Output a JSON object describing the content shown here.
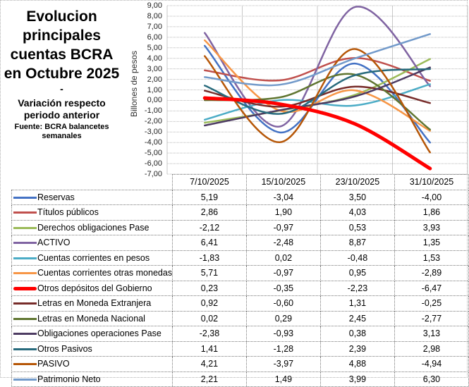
{
  "title": {
    "main": "Evolucion principales cuentas BCRA en Octubre 2025",
    "dash": "-",
    "subtitle": "Variación respecto periodo anterior",
    "source": "Fuente: BCRA balancetes semanales"
  },
  "chart_data": {
    "type": "line",
    "smoothed": true,
    "title": "Evolucion principales cuentas BCRA en Octubre 2025 - Variación respecto periodo anterior",
    "xlabel": "",
    "ylabel": "Billones de pesos",
    "ylim": [
      -7,
      9
    ],
    "yticks": [
      "9,00",
      "8,00",
      "7,00",
      "6,00",
      "5,00",
      "4,00",
      "3,00",
      "2,00",
      "1,00",
      "0,00",
      "-1,00",
      "-2,00",
      "-3,00",
      "-4,00",
      "-5,00",
      "-6,00",
      "-7,00"
    ],
    "grid": true,
    "legend": "data-table-below",
    "categories": [
      "7/10/2025",
      "15/10/2025",
      "23/10/2025",
      "31/10/2025"
    ],
    "series": [
      {
        "name": "Reservas",
        "color": "#4472C4",
        "values": [
          5.19,
          -3.04,
          3.5,
          -4.0
        ],
        "display": [
          "5,19",
          "-3,04",
          "3,50",
          "-4,00"
        ]
      },
      {
        "name": "Títulos públicos",
        "color": "#C0504D",
        "values": [
          2.86,
          1.9,
          4.03,
          1.86
        ],
        "display": [
          "2,86",
          "1,90",
          "4,03",
          "1,86"
        ]
      },
      {
        "name": "Derechos obligaciones Pase",
        "color": "#9BBB59",
        "values": [
          -2.12,
          -0.97,
          0.53,
          3.93
        ],
        "display": [
          "-2,12",
          "-0,97",
          "0,53",
          "3,93"
        ]
      },
      {
        "name": "ACTIVO",
        "color": "#8064A2",
        "values": [
          6.41,
          -2.48,
          8.87,
          1.35
        ],
        "display": [
          "6,41",
          "-2,48",
          "8,87",
          "1,35"
        ]
      },
      {
        "name": "Cuentas corrientes en pesos",
        "color": "#4BACC6",
        "values": [
          -1.83,
          0.02,
          -0.48,
          1.53
        ],
        "display": [
          "-1,83",
          "0,02",
          "-0,48",
          "1,53"
        ]
      },
      {
        "name": "Cuentas corrientes otras monedas",
        "color": "#F79646",
        "values": [
          5.71,
          -0.97,
          0.95,
          -2.89
        ],
        "display": [
          "5,71",
          "-0,97",
          "0,95",
          "-2,89"
        ]
      },
      {
        "name": "Otros depósitos del Gobierno",
        "color": "#FF0000",
        "thick": true,
        "values": [
          0.23,
          -0.35,
          -2.23,
          -6.47
        ],
        "display": [
          "0,23",
          "-0,35",
          "-2,23",
          "-6,47"
        ]
      },
      {
        "name": "Letras en Moneda Extranjera",
        "color": "#772C2A",
        "values": [
          0.92,
          -0.6,
          1.31,
          -0.25
        ],
        "display": [
          "0,92",
          "-0,60",
          "1,31",
          "-0,25"
        ]
      },
      {
        "name": "Letras en Moneda Nacional",
        "color": "#5F7530",
        "values": [
          0.02,
          0.29,
          2.45,
          -2.77
        ],
        "display": [
          "0,02",
          "0,29",
          "2,45",
          "-2,77"
        ]
      },
      {
        "name": "Obligaciones operaciones Pase",
        "color": "#4D3B62",
        "values": [
          -2.38,
          -0.93,
          0.38,
          3.13
        ],
        "display": [
          "-2,38",
          "-0,93",
          "0,38",
          "3,13"
        ]
      },
      {
        "name": "Otros Pasivos",
        "color": "#276A7C",
        "values": [
          1.41,
          -1.28,
          2.39,
          2.98
        ],
        "display": [
          "1,41",
          "-1,28",
          "2,39",
          "2,98"
        ]
      },
      {
        "name": "PASIVO",
        "color": "#B65708",
        "values": [
          4.21,
          -3.97,
          4.88,
          -4.94
        ],
        "display": [
          "4,21",
          "-3,97",
          "4,88",
          "-4,94"
        ]
      },
      {
        "name": "Patrimonio Neto",
        "color": "#729ACA",
        "values": [
          2.21,
          1.49,
          3.99,
          6.3
        ],
        "display": [
          "2,21",
          "1,49",
          "3,99",
          "6,30"
        ]
      }
    ]
  }
}
